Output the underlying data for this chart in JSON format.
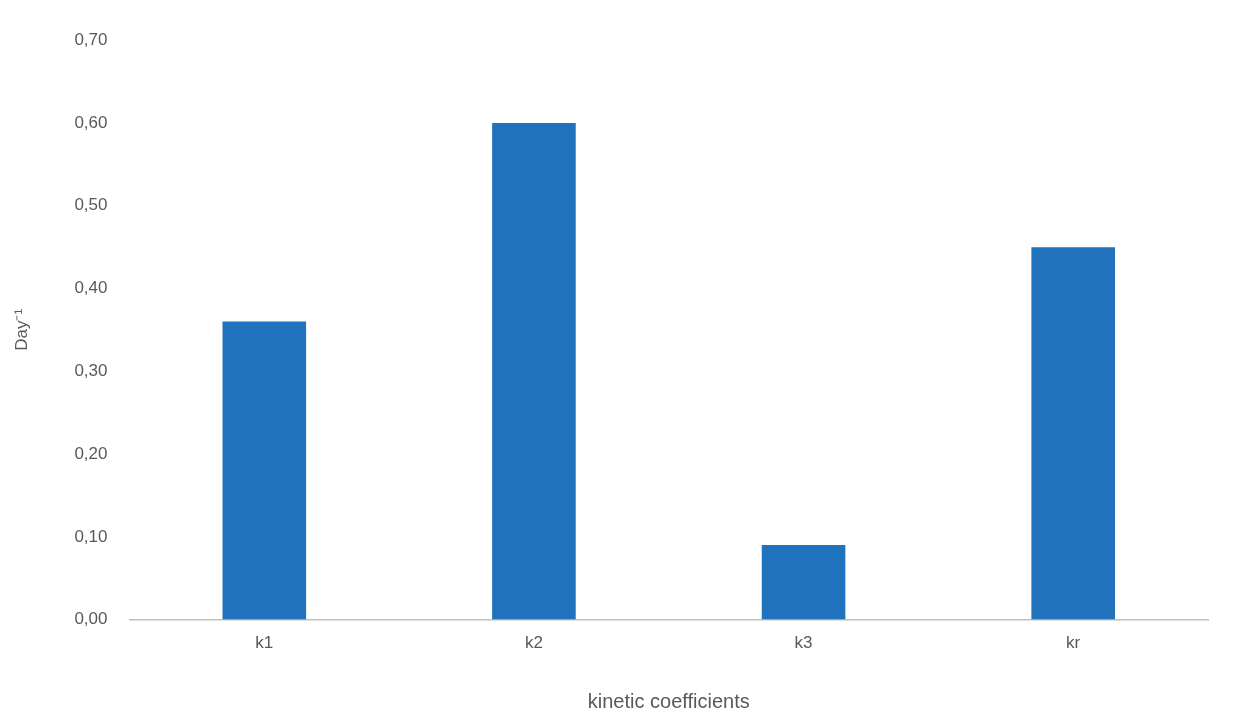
{
  "chart_data": {
    "type": "bar",
    "xlabel": "kinetic coefficients",
    "ylabel": "Day⁻¹",
    "categories": [
      "k1",
      "k2",
      "k3",
      "kr"
    ],
    "values": [
      0.36,
      0.6,
      0.09,
      0.45
    ],
    "color": "#1f72bb",
    "ylim": [
      0,
      0.7
    ],
    "yticks": [
      {
        "value": 0,
        "label": "0,00"
      },
      {
        "value": 0.1,
        "label": "0,10"
      },
      {
        "value": 0.2,
        "label": "0,20"
      },
      {
        "value": 0.3,
        "label": "0,30"
      },
      {
        "value": 0.4,
        "label": "0,40"
      },
      {
        "value": 0.5,
        "label": "0,50"
      },
      {
        "value": 0.6,
        "label": "0,60"
      },
      {
        "value": 0.7,
        "label": "0,70"
      }
    ],
    "grid": false,
    "legend": false
  }
}
